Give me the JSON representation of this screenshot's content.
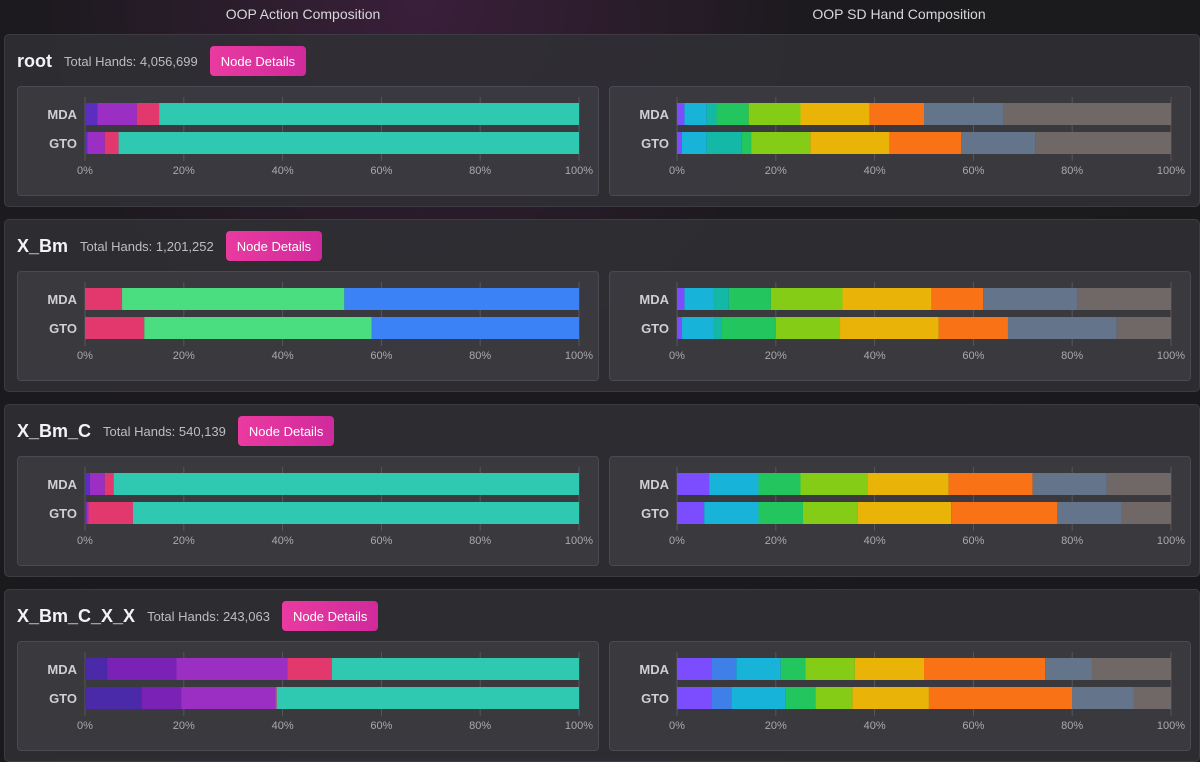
{
  "headers": {
    "left": "OOP Action Composition",
    "right": "OOP SD Hand Composition"
  },
  "button_label": "Node Details",
  "colors": {
    "action": [
      "#4a2aa8",
      "#9b2fc4",
      "#e3386e",
      "#2fc9b2",
      "#4ade80",
      "#3b82f6",
      "#7a22b5"
    ],
    "hand": [
      "#7c4dff",
      "#3f7fe8",
      "#17b3d9",
      "#14b8a6",
      "#22c55e",
      "#84cc16",
      "#eab308",
      "#f97316",
      "#64748b",
      "#706866"
    ],
    "button": "#e93aa0"
  },
  "chart_data": [
    {
      "node": "root",
      "total_hands": "Total Hands: 4,056,699",
      "action": {
        "type": "bar",
        "orientation": "horizontal",
        "stacked": true,
        "categories": [
          "MDA",
          "GTO"
        ],
        "xlim": [
          0,
          100
        ],
        "x_ticks": [
          "0%",
          "20%",
          "40%",
          "60%",
          "80%",
          "100%"
        ],
        "series": [
          {
            "color": "#5b2ec0",
            "values": [
              2.5,
              0.5
            ]
          },
          {
            "color": "#9b2fc4",
            "values": [
              8,
              3.5
            ]
          },
          {
            "color": "#e3386e",
            "values": [
              4.5,
              2.8
            ]
          },
          {
            "color": "#2fc9b2",
            "values": [
              85,
              93.2
            ]
          }
        ]
      },
      "hand": {
        "type": "bar",
        "orientation": "horizontal",
        "stacked": true,
        "categories": [
          "MDA",
          "GTO"
        ],
        "xlim": [
          0,
          100
        ],
        "x_ticks": [
          "0%",
          "20%",
          "40%",
          "60%",
          "80%",
          "100%"
        ],
        "series": [
          {
            "color": "#7c4dff",
            "values": [
              1.5,
              1
            ]
          },
          {
            "color": "#17b3d9",
            "values": [
              4.5,
              5
            ]
          },
          {
            "color": "#14b8a6",
            "values": [
              2,
              7
            ]
          },
          {
            "color": "#22c55e",
            "values": [
              6.5,
              2
            ]
          },
          {
            "color": "#84cc16",
            "values": [
              10.5,
              12
            ]
          },
          {
            "color": "#eab308",
            "values": [
              14,
              16
            ]
          },
          {
            "color": "#f97316",
            "values": [
              11,
              14.5
            ]
          },
          {
            "color": "#64748b",
            "values": [
              16,
              15
            ]
          },
          {
            "color": "#706866",
            "values": [
              34,
              27.5
            ]
          }
        ]
      }
    },
    {
      "node": "X_Bm",
      "total_hands": "Total Hands: 1,201,252",
      "action": {
        "type": "bar",
        "orientation": "horizontal",
        "stacked": true,
        "categories": [
          "MDA",
          "GTO"
        ],
        "xlim": [
          0,
          100
        ],
        "x_ticks": [
          "0%",
          "20%",
          "40%",
          "60%",
          "80%",
          "100%"
        ],
        "series": [
          {
            "color": "#e3386e",
            "values": [
              7.5,
              12
            ]
          },
          {
            "color": "#4ade80",
            "values": [
              45,
              46
            ]
          },
          {
            "color": "#3b82f6",
            "values": [
              47.5,
              42
            ]
          }
        ]
      },
      "hand": {
        "type": "bar",
        "orientation": "horizontal",
        "stacked": true,
        "categories": [
          "MDA",
          "GTO"
        ],
        "xlim": [
          0,
          100
        ],
        "x_ticks": [
          "0%",
          "20%",
          "40%",
          "60%",
          "80%",
          "100%"
        ],
        "series": [
          {
            "color": "#7c4dff",
            "values": [
              1.5,
              1
            ]
          },
          {
            "color": "#17b3d9",
            "values": [
              6,
              6.5
            ]
          },
          {
            "color": "#14b8a6",
            "values": [
              3,
              1.5
            ]
          },
          {
            "color": "#22c55e",
            "values": [
              8.5,
              11
            ]
          },
          {
            "color": "#84cc16",
            "values": [
              14.5,
              13
            ]
          },
          {
            "color": "#eab308",
            "values": [
              18,
              20
            ]
          },
          {
            "color": "#f97316",
            "values": [
              10.5,
              14
            ]
          },
          {
            "color": "#64748b",
            "values": [
              19,
              22
            ]
          },
          {
            "color": "#706866",
            "values": [
              19,
              11
            ]
          }
        ]
      }
    },
    {
      "node": "X_Bm_C",
      "total_hands": "Total Hands: 540,139",
      "action": {
        "type": "bar",
        "orientation": "horizontal",
        "stacked": true,
        "categories": [
          "MDA",
          "GTO"
        ],
        "xlim": [
          0,
          100
        ],
        "x_ticks": [
          "0%",
          "20%",
          "40%",
          "60%",
          "80%",
          "100%"
        ],
        "series": [
          {
            "color": "#5b2ec0",
            "values": [
              1,
              0.3
            ]
          },
          {
            "color": "#9b2fc4",
            "values": [
              3,
              0.4
            ]
          },
          {
            "color": "#e3386e",
            "values": [
              1.8,
              9
            ]
          },
          {
            "color": "#2fc9b2",
            "values": [
              94.2,
              90.3
            ]
          }
        ]
      },
      "hand": {
        "type": "bar",
        "orientation": "horizontal",
        "stacked": true,
        "categories": [
          "MDA",
          "GTO"
        ],
        "xlim": [
          0,
          100
        ],
        "x_ticks": [
          "0%",
          "20%",
          "40%",
          "60%",
          "80%",
          "100%"
        ],
        "series": [
          {
            "color": "#7c4dff",
            "values": [
              6.5,
              5.5
            ]
          },
          {
            "color": "#17b3d9",
            "values": [
              10,
              11
            ]
          },
          {
            "color": "#22c55e",
            "values": [
              8.5,
              9
            ]
          },
          {
            "color": "#84cc16",
            "values": [
              13.5,
              11
            ]
          },
          {
            "color": "#eab308",
            "values": [
              16.5,
              19
            ]
          },
          {
            "color": "#f97316",
            "values": [
              17,
              21.5
            ]
          },
          {
            "color": "#64748b",
            "values": [
              15,
              13
            ]
          },
          {
            "color": "#706866",
            "values": [
              13,
              10
            ]
          }
        ]
      }
    },
    {
      "node": "X_Bm_C_X_X",
      "total_hands": "Total Hands: 243,063",
      "action": {
        "type": "bar",
        "orientation": "horizontal",
        "stacked": true,
        "categories": [
          "MDA",
          "GTO"
        ],
        "xlim": [
          0,
          100
        ],
        "x_ticks": [
          "0%",
          "20%",
          "40%",
          "60%",
          "80%",
          "100%"
        ],
        "series": [
          {
            "color": "#4a2aa8",
            "values": [
              4.5,
              11.5
            ]
          },
          {
            "color": "#7a22b5",
            "values": [
              14,
              8
            ]
          },
          {
            "color": "#9b2fc4",
            "values": [
              22.5,
              19
            ]
          },
          {
            "color": "#e3386e",
            "values": [
              9,
              0.3
            ]
          },
          {
            "color": "#2fc9b2",
            "values": [
              50,
              61.2
            ]
          }
        ]
      },
      "hand": {
        "type": "bar",
        "orientation": "horizontal",
        "stacked": true,
        "categories": [
          "MDA",
          "GTO"
        ],
        "xlim": [
          0,
          100
        ],
        "x_ticks": [
          "0%",
          "20%",
          "40%",
          "60%",
          "80%",
          "100%"
        ],
        "series": [
          {
            "color": "#7c4dff",
            "values": [
              7,
              7
            ]
          },
          {
            "color": "#3f7fe8",
            "values": [
              5,
              4
            ]
          },
          {
            "color": "#17b3d9",
            "values": [
              9,
              11
            ]
          },
          {
            "color": "#22c55e",
            "values": [
              5,
              6
            ]
          },
          {
            "color": "#84cc16",
            "values": [
              10,
              7.5
            ]
          },
          {
            "color": "#eab308",
            "values": [
              14,
              15.5
            ]
          },
          {
            "color": "#f97316",
            "values": [
              24.5,
              29
            ]
          },
          {
            "color": "#64748b",
            "values": [
              9.5,
              12.5
            ]
          },
          {
            "color": "#706866",
            "values": [
              16,
              7.5
            ]
          }
        ]
      }
    }
  ]
}
